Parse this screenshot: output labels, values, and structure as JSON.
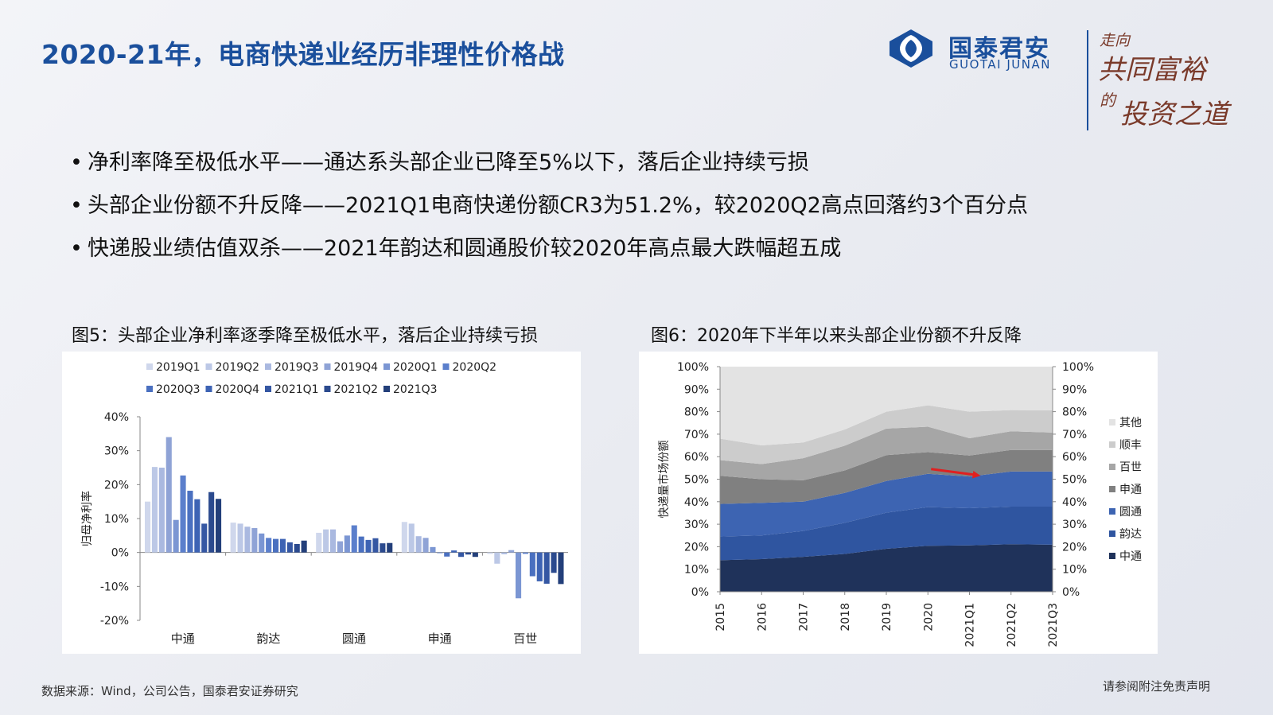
{
  "title": "2020-21年，电商快递业经历非理性价格战",
  "brand": {
    "name_cn": "国泰君安",
    "name_en": "GUOTAI JUNAN",
    "slogan_1": "走向",
    "slogan_2": "共同富裕",
    "slogan_3": "的",
    "slogan_4": "投资之道"
  },
  "bullets": [
    "净利率降至极低水平——通达系头部企业已降至5%以下，落后企业持续亏损",
    "头部企业份额不升反降——2021Q1电商快递份额CR3为51.2%，较2020Q2高点回落约3个百分点",
    "快递股业绩估值双杀——2021年韵达和圆通股价较2020年高点最大跌幅超五成"
  ],
  "fig5_caption": "图5：头部企业净利率逐季降至极低水平，落后企业持续亏损",
  "fig6_caption": "图6：2020年下半年以来头部企业份额不升反降",
  "footer_source": "数据来源：Wind，公司公告，国泰君安证券研究",
  "footer_disclaimer": "请参阅附注免责声明",
  "chart_data": [
    {
      "type": "bar",
      "ylabel": "归母净利率",
      "ylim": [
        -20,
        40
      ],
      "yticks": [
        "-20%",
        "-10%",
        "0%",
        "10%",
        "20%",
        "30%",
        "40%"
      ],
      "categories": [
        "中通",
        "韵达",
        "圆通",
        "申通",
        "百世"
      ],
      "legend_position": "top",
      "colors": [
        "#cfd7ec",
        "#bcc8e6",
        "#aab9e0",
        "#8fa3d6",
        "#7b96d3",
        "#5b7fcc",
        "#4a70c0",
        "#3d63b4",
        "#3557a3",
        "#2b4a8e",
        "#233f7a"
      ],
      "series": [
        {
          "name": "2019Q1",
          "values": [
            15.0,
            8.8,
            5.8,
            9.0,
            -0.4
          ]
        },
        {
          "name": "2019Q2",
          "values": [
            25.2,
            8.5,
            6.8,
            8.5,
            -3.3
          ]
        },
        {
          "name": "2019Q3",
          "values": [
            25.0,
            7.6,
            6.8,
            4.8,
            -0.5
          ]
        },
        {
          "name": "2019Q4",
          "values": [
            34.0,
            7.2,
            3.3,
            4.3,
            0.7
          ]
        },
        {
          "name": "2020Q1",
          "values": [
            9.6,
            5.6,
            5.0,
            1.6,
            -13.5
          ]
        },
        {
          "name": "2020Q2",
          "values": [
            22.7,
            4.3,
            8.0,
            -0.2,
            -0.4
          ]
        },
        {
          "name": "2020Q3",
          "values": [
            18.2,
            4.0,
            4.7,
            -1.2,
            -7.0
          ]
        },
        {
          "name": "2020Q4",
          "values": [
            15.7,
            4.0,
            3.7,
            0.6,
            -8.5
          ]
        },
        {
          "name": "2021Q1",
          "values": [
            8.5,
            3.0,
            4.2,
            -1.3,
            -9.2
          ]
        },
        {
          "name": "2021Q2",
          "values": [
            17.8,
            2.5,
            2.7,
            -0.6,
            -6.0
          ]
        },
        {
          "name": "2021Q3",
          "values": [
            15.8,
            3.5,
            2.8,
            -1.3,
            -9.3
          ]
        }
      ]
    },
    {
      "type": "area",
      "stacked": true,
      "ylabel": "快递量市场份额",
      "ylim": [
        0,
        100
      ],
      "yticks": [
        "0%",
        "10%",
        "20%",
        "30%",
        "40%",
        "50%",
        "60%",
        "70%",
        "80%",
        "90%",
        "100%"
      ],
      "x": [
        "2015",
        "2016",
        "2017",
        "2018",
        "2019",
        "2020",
        "2021Q1",
        "2021Q2",
        "2021Q3"
      ],
      "legend_position": "right",
      "annotation": "red arrow from 2020 to 2021Q1 on top of 圆通 layer (share decline)",
      "series": [
        {
          "name": "中通",
          "color": "#1f325a",
          "values": [
            14.0,
            14.5,
            15.5,
            16.8,
            19.1,
            20.4,
            20.6,
            21.1,
            20.9
          ]
        },
        {
          "name": "韵达",
          "color": "#2f55a0",
          "values": [
            10.5,
            10.5,
            11.5,
            13.8,
            16.0,
            17.2,
            16.5,
            16.7,
            16.9
          ]
        },
        {
          "name": "圆通",
          "color": "#3d64b2",
          "values": [
            14.5,
            14.5,
            13.0,
            13.3,
            14.1,
            14.8,
            14.1,
            15.6,
            15.6
          ]
        },
        {
          "name": "申通",
          "color": "#808080",
          "values": [
            12.5,
            10.5,
            9.5,
            10.0,
            11.5,
            9.6,
            9.3,
            9.6,
            9.6
          ]
        },
        {
          "name": "百世",
          "color": "#a6a6a6",
          "values": [
            7.0,
            6.7,
            9.8,
            11.0,
            11.8,
            11.3,
            7.7,
            8.3,
            7.7
          ]
        },
        {
          "name": "顺丰",
          "color": "#cccccc",
          "values": [
            9.5,
            8.3,
            7.0,
            7.2,
            7.5,
            9.5,
            11.8,
            9.4,
            9.9
          ]
        },
        {
          "name": "其他",
          "color": "#e3e3e3",
          "values": [
            32.0,
            35.0,
            33.7,
            27.9,
            20.0,
            17.2,
            20.0,
            19.3,
            19.4
          ]
        }
      ]
    }
  ]
}
